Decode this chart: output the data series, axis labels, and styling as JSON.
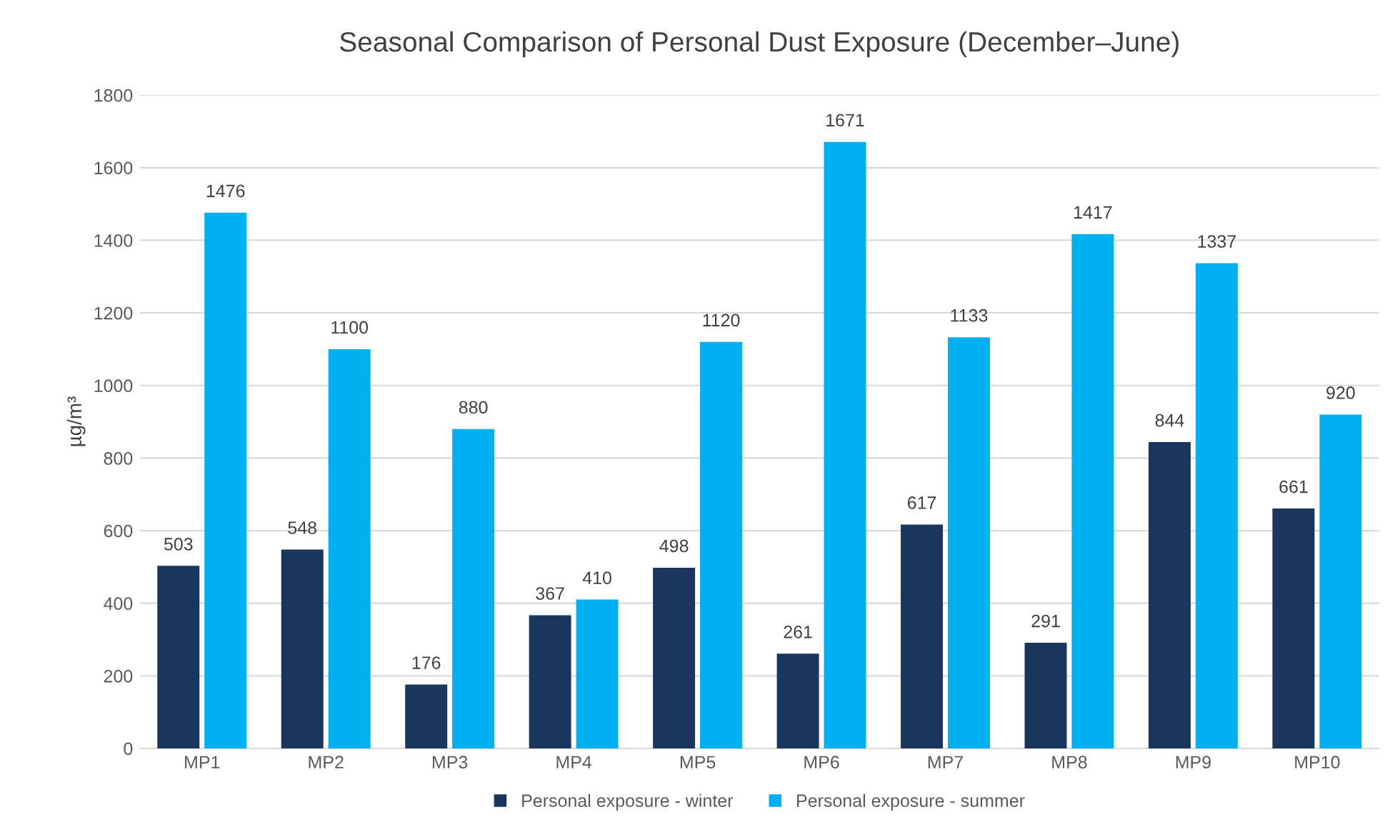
{
  "chart_data": {
    "type": "bar",
    "title": "Seasonal Comparison of Personal Dust Exposure (December–June)",
    "ylabel": "µg/m³",
    "categories": [
      "MP1",
      "MP2",
      "MP3",
      "MP4",
      "MP5",
      "MP6",
      "MP7",
      "MP8",
      "MP9",
      "MP10"
    ],
    "series": [
      {
        "name": "Personal exposure - winter",
        "color": "#1b365d",
        "values": [
          503,
          548,
          176,
          367,
          498,
          261,
          617,
          291,
          844,
          661
        ]
      },
      {
        "name": "Personal exposure - summer",
        "color": "#00b0f0",
        "values": [
          1476,
          1100,
          880,
          410,
          1120,
          1671,
          1133,
          1417,
          1337,
          920
        ]
      }
    ],
    "ylim": [
      0,
      1800
    ],
    "yticks": [
      0,
      200,
      400,
      600,
      800,
      1000,
      1200,
      1400,
      1600,
      1800
    ],
    "grid": "y",
    "legend": "bottom",
    "data_labels": true
  }
}
